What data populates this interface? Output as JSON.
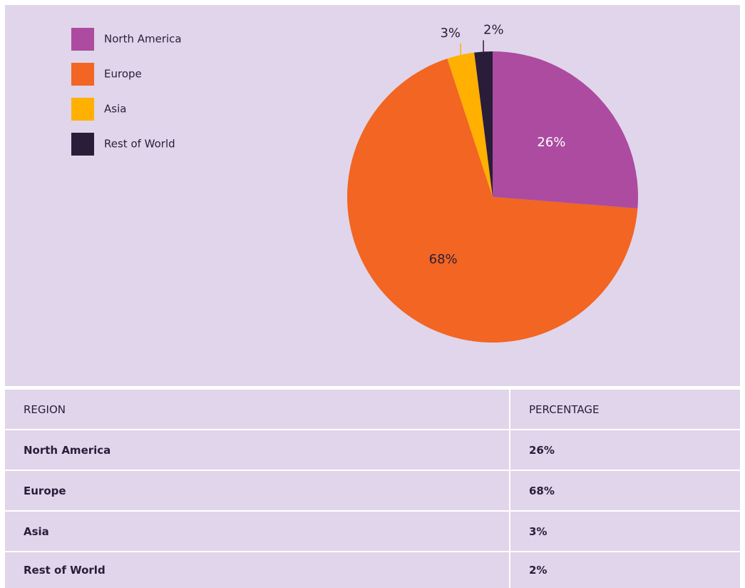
{
  "chart_data": {
    "type": "pie",
    "categories": [
      "North America",
      "Europe",
      "Asia",
      "Rest of World"
    ],
    "values": [
      26,
      68,
      3,
      2
    ],
    "value_labels": [
      "26%",
      "68%",
      "3%",
      "2%"
    ],
    "colors": [
      "#ac4b9f",
      "#f26522",
      "#ffb000",
      "#2a1d3a"
    ],
    "legend": "top-left"
  },
  "table": {
    "header": [
      "REGION",
      "PERCENTAGE"
    ],
    "rows": [
      [
        "North America",
        "26%"
      ],
      [
        "Europe",
        "68%"
      ],
      [
        "Asia",
        "3%"
      ],
      [
        "Rest of World",
        "2%"
      ]
    ]
  }
}
